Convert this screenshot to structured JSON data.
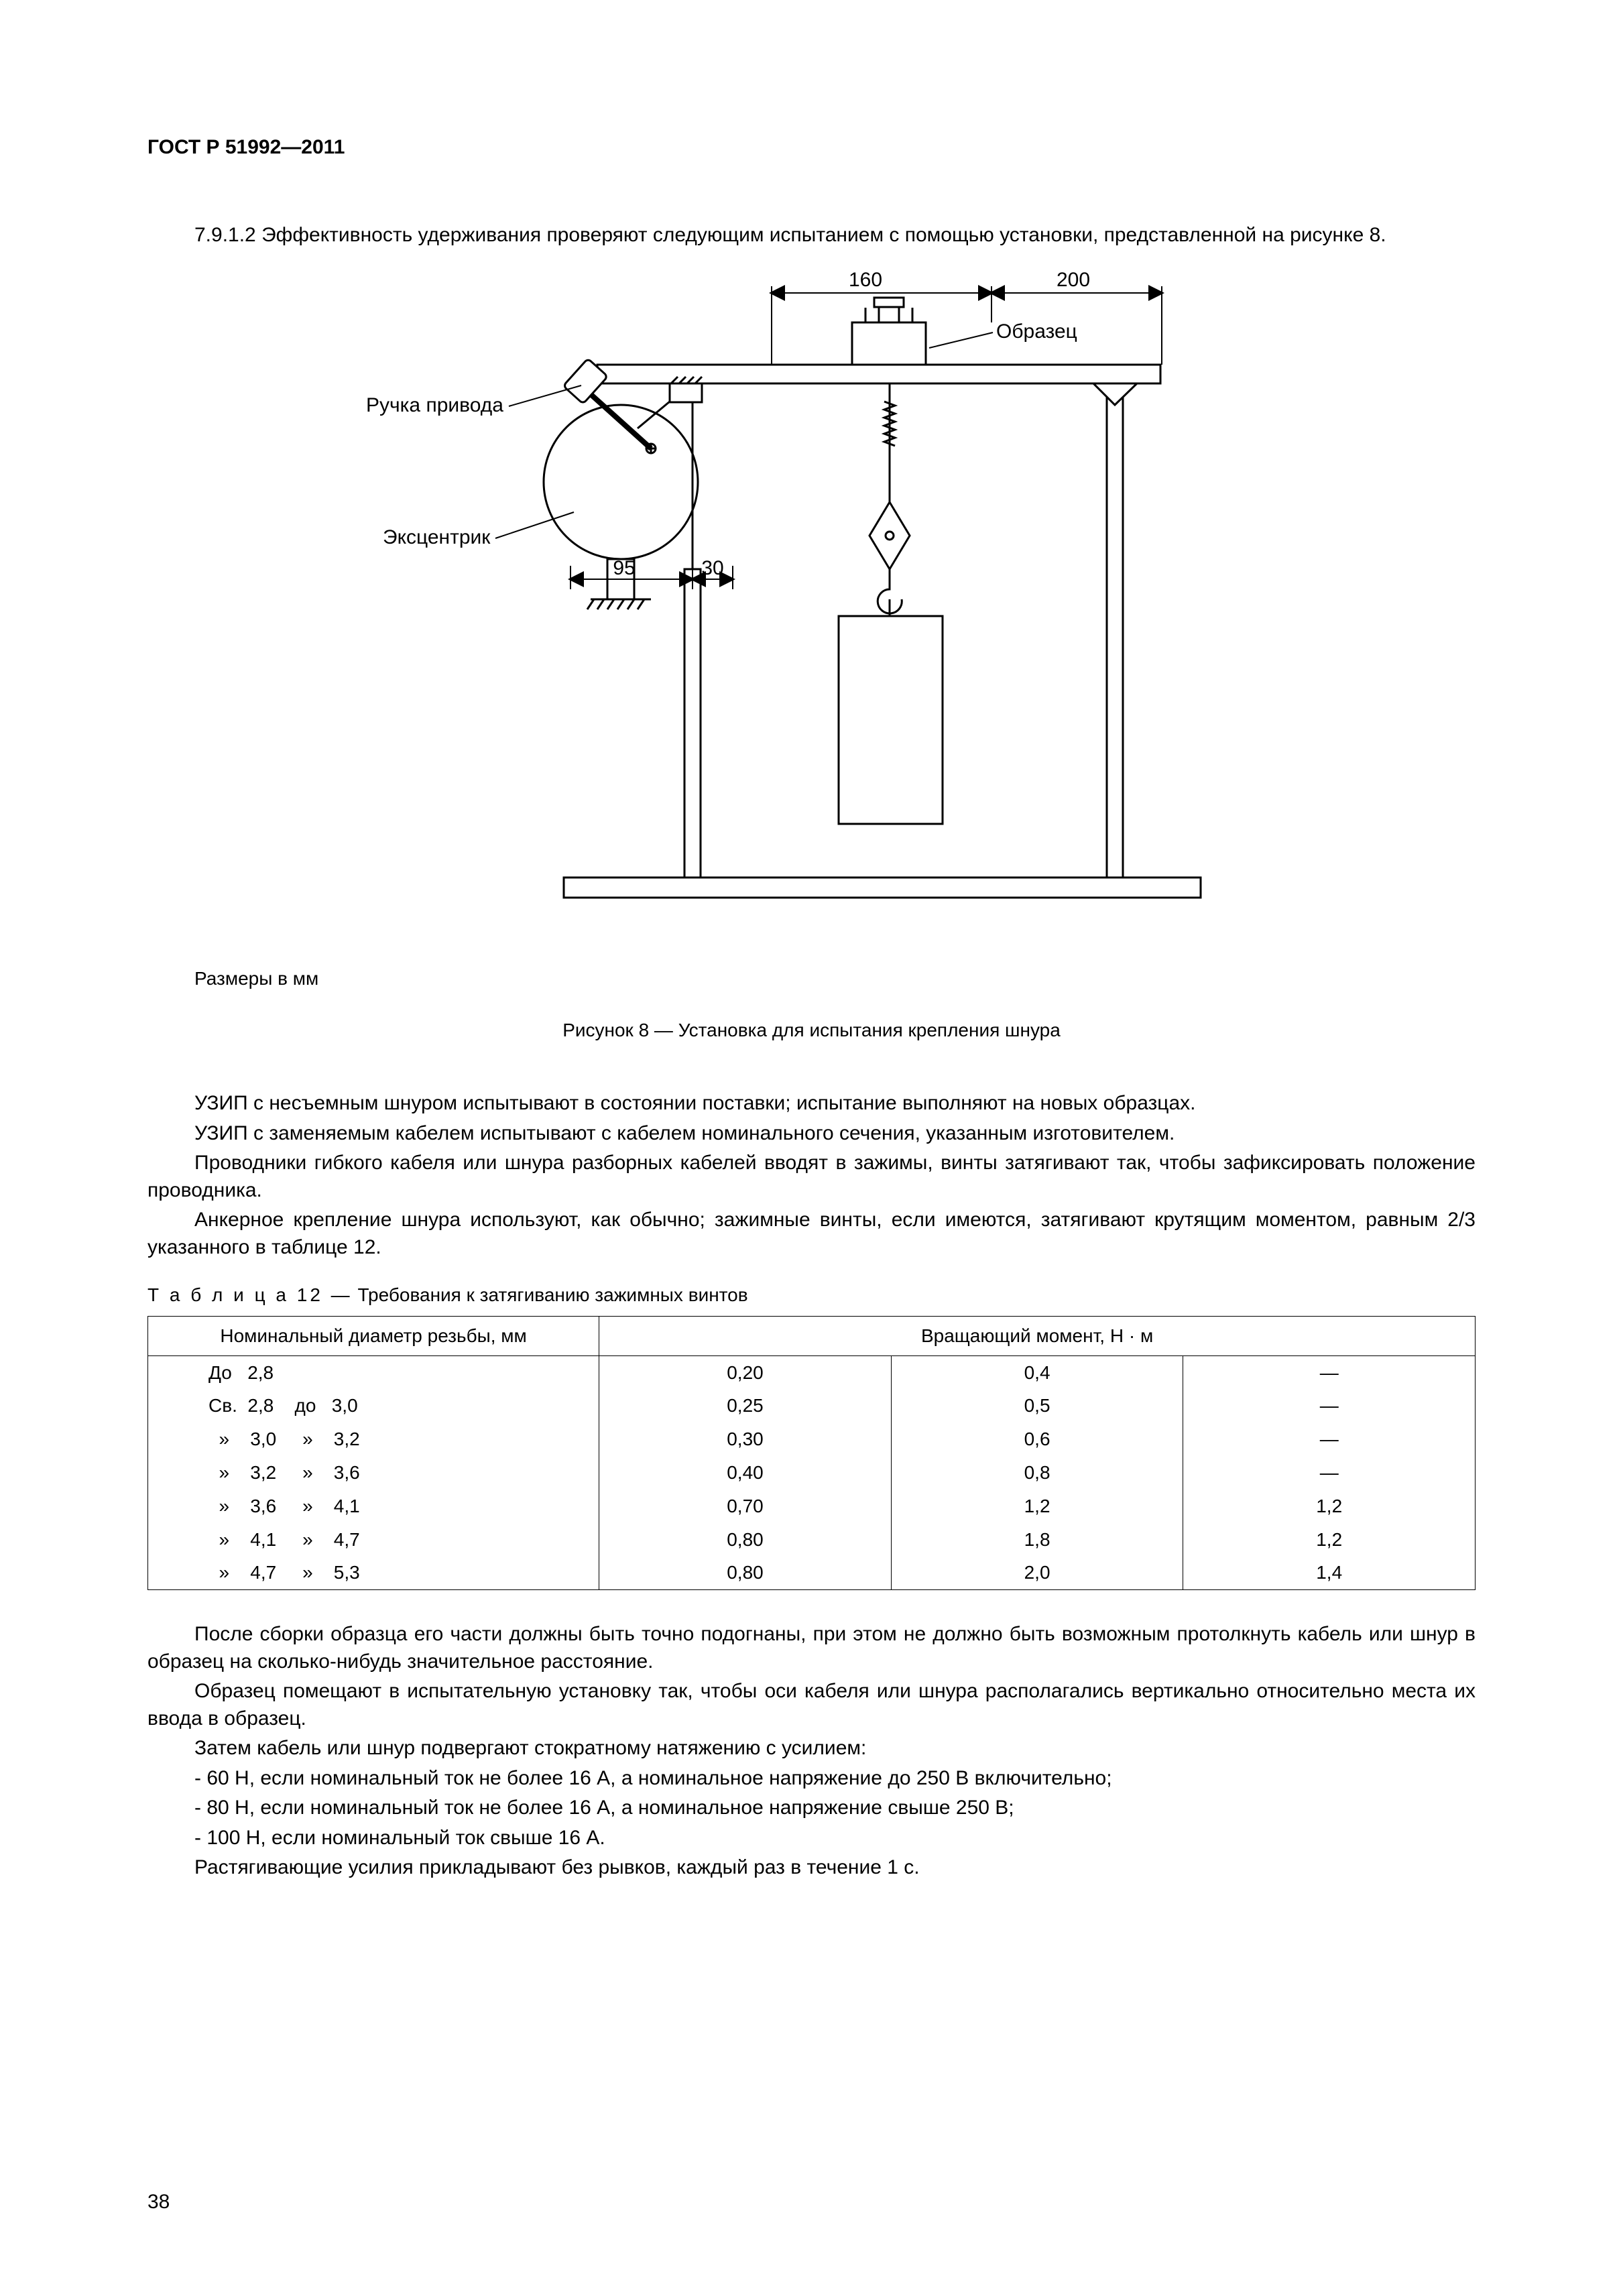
{
  "header": "ГОСТ Р 51992—2011",
  "para1": "7.9.1.2 Эффективность удерживания проверяют следующим испытанием с помощью установки, представленной на рисунке 8.",
  "figure": {
    "label_handle": "Ручка привода",
    "label_eccentric": "Эксцентрик",
    "label_sample": "Образец",
    "d160": "160",
    "d200": "200",
    "d95": "95",
    "d30": "30"
  },
  "dim_note": "Размеры в мм",
  "fig_caption": "Рисунок 8 — Установка для испытания крепления шнура",
  "para2": "УЗИП с несъемным шнуром испытывают в состоянии поставки; испытание выполняют на новых образцах.",
  "para3": "УЗИП с заменяемым кабелем испытывают с кабелем номинального сечения,  указанным изготовителем.",
  "para4": "Проводники гибкого кабеля или шнура разборных кабелей вводят в зажимы, винты затягивают так, чтобы зафиксировать положение проводника.",
  "para5": "Анкерное крепление шнура используют, как обычно; зажимные винты, если имеются, затягивают крутящим моментом, равным 2/3 указанного в таблице 12.",
  "table": {
    "title_spaced": "Т а б л и ц а  12 —",
    "title_rest": "  Требования к затягиванию зажимных винтов",
    "head_col1": "Номинальный диаметр резьбы, мм",
    "head_col_span": "Вращающий момент, Н · м",
    "rows": [
      {
        "d": "До   2,8",
        "a": "0,20",
        "b": "0,4",
        "c": "—"
      },
      {
        "d": "Св.  2,8    до   3,0",
        "a": "0,25",
        "b": "0,5",
        "c": "—"
      },
      {
        "d": "  »    3,0     »    3,2",
        "a": "0,30",
        "b": "0,6",
        "c": "—"
      },
      {
        "d": "  »    3,2     »    3,6",
        "a": "0,40",
        "b": "0,8",
        "c": "—"
      },
      {
        "d": "  »    3,6     »    4,1",
        "a": "0,70",
        "b": "1,2",
        "c": "1,2"
      },
      {
        "d": "  »    4,1     »    4,7",
        "a": "0,80",
        "b": "1,8",
        "c": "1,2"
      },
      {
        "d": "  »    4,7     »    5,3",
        "a": "0,80",
        "b": "2,0",
        "c": "1,4"
      }
    ]
  },
  "para6": "После сборки образца его части должны быть точно подогнаны, при этом не должно быть возможным протолкнуть кабель или шнур в образец на сколько-нибудь значительное расстояние.",
  "para7": "Образец помещают в испытательную установку так, чтобы оси кабеля или шнура располагались вертикально относительно места их ввода в образец.",
  "para8": "Затем кабель или шнур подвергают стократному натяжению с усилием:",
  "bullet1": "- 60 Н, если номинальный ток не более 16 А, а номинальное напряжение до 250 В включительно;",
  "bullet2": "- 80 Н, если номинальный ток не более 16 А, а номинальное напряжение свыше 250 В;",
  "bullet3": "- 100 Н, если номинальный ток свыше 16 А.",
  "para9": "Растягивающие усилия прикладывают без рывков, каждый раз в течение 1 с.",
  "page_number": "38"
}
